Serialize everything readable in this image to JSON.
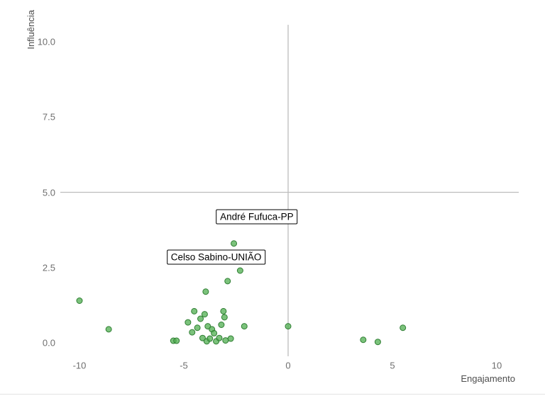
{
  "chart_data": {
    "type": "scatter",
    "title": "",
    "xlabel": "Engajamento",
    "ylabel": "Influência",
    "xlim": [
      -11,
      11
    ],
    "ylim": [
      -0.3,
      10.6
    ],
    "x_ticks": [
      -10,
      -5,
      0,
      5,
      10
    ],
    "y_ticks": [
      {
        "value": 0,
        "label": "0.0"
      },
      {
        "value": 2.5,
        "label": "2.5"
      },
      {
        "value": 5,
        "label": "5.0"
      },
      {
        "value": 7.5,
        "label": "7.5"
      },
      {
        "value": 10,
        "label": "10.0"
      }
    ],
    "grid": false,
    "legend": "none",
    "reference_lines": {
      "horizontal_y": 5.0,
      "vertical_x": 0.0,
      "color": "#bdbdbd"
    },
    "point_style": {
      "fill": "#4fae4f",
      "stroke": "#2e7d32",
      "opacity": 0.75,
      "radius": 4
    },
    "points": [
      [
        -10.0,
        1.4
      ],
      [
        -8.6,
        0.45
      ],
      [
        -5.5,
        0.07
      ],
      [
        -5.35,
        0.07
      ],
      [
        -4.8,
        0.68
      ],
      [
        -4.6,
        0.35
      ],
      [
        -4.5,
        1.05
      ],
      [
        -4.35,
        0.5
      ],
      [
        -4.2,
        0.8
      ],
      [
        -4.1,
        0.16
      ],
      [
        -4.0,
        0.95
      ],
      [
        -3.95,
        1.7
      ],
      [
        -3.9,
        0.05
      ],
      [
        -3.85,
        0.55
      ],
      [
        -3.75,
        0.14
      ],
      [
        -3.65,
        0.45
      ],
      [
        -3.55,
        0.32
      ],
      [
        -3.45,
        0.05
      ],
      [
        -3.3,
        0.16
      ],
      [
        -3.2,
        0.6
      ],
      [
        -3.1,
        1.05
      ],
      [
        -3.05,
        0.85
      ],
      [
        -3.0,
        0.08
      ],
      [
        -2.9,
        2.05
      ],
      [
        -2.75,
        0.14
      ],
      [
        -2.6,
        3.3
      ],
      [
        -2.3,
        2.4
      ],
      [
        -2.1,
        0.55
      ],
      [
        0.0,
        0.55
      ],
      [
        3.6,
        0.1
      ],
      [
        4.3,
        0.03
      ],
      [
        5.5,
        0.5
      ]
    ],
    "annotations": [
      {
        "label": "André Fufuca-PP",
        "x": -1.5,
        "y": 4.2
      },
      {
        "label": "Celso Sabino-UNIÃO",
        "x": -3.45,
        "y": 2.85
      }
    ]
  }
}
